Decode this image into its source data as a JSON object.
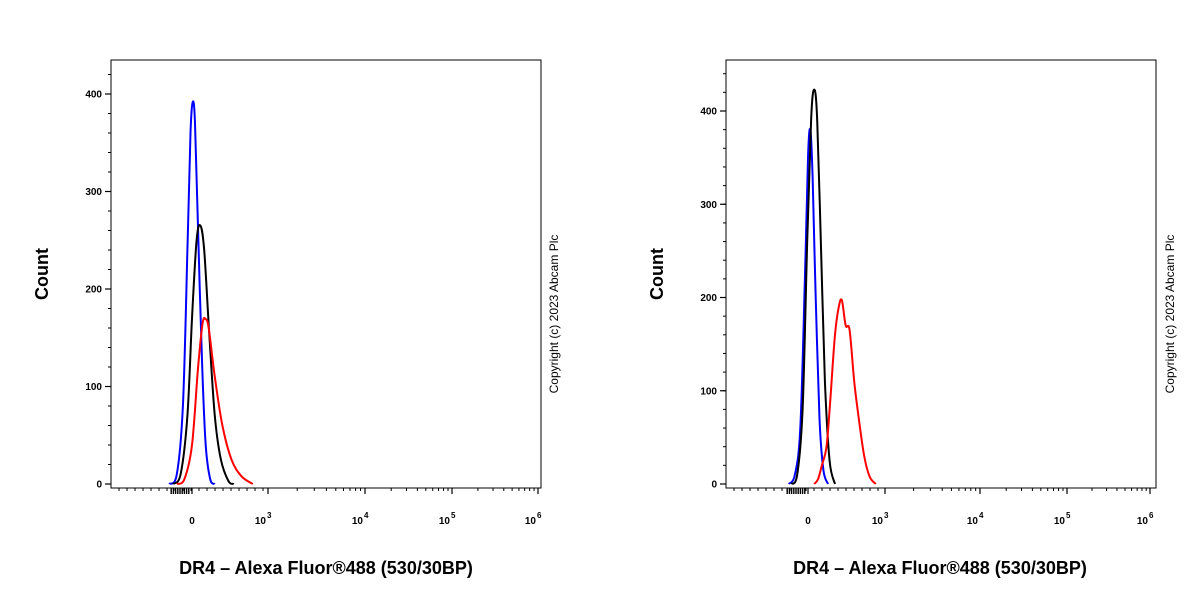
{
  "chart_data": [
    {
      "type": "line",
      "subtype": "flow-cytometry-histogram",
      "xlabel": "DR4 – Alexa Fluor®488 (530/30BP)",
      "ylabel": "Count",
      "x_scale": "biexponential",
      "ylim": [
        0,
        450
      ],
      "y_ticks": [
        "0",
        "100",
        "200",
        "300",
        "400"
      ],
      "x_ticks": [
        {
          "base": "0",
          "exp": ""
        },
        {
          "base": "10",
          "exp": "3"
        },
        {
          "base": "10",
          "exp": "4"
        },
        {
          "base": "10",
          "exp": "5"
        },
        {
          "base": "10",
          "exp": "6"
        }
      ],
      "copyright": "Copyright (c) 2023 Abcam Plc",
      "series": [
        {
          "color": "#0000ff",
          "peak_count": 392,
          "points": [
            [
              -300,
              0
            ],
            [
              -200,
              10
            ],
            [
              -120,
              80
            ],
            [
              -60,
              240
            ],
            [
              -20,
              360
            ],
            [
              10,
              392
            ],
            [
              40,
              370
            ],
            [
              80,
              260
            ],
            [
              130,
              130
            ],
            [
              180,
              40
            ],
            [
              240,
              5
            ],
            [
              300,
              0
            ]
          ]
        },
        {
          "color": "#000000",
          "peak_count": 265,
          "points": [
            [
              -250,
              0
            ],
            [
              -150,
              10
            ],
            [
              -60,
              70
            ],
            [
              0,
              170
            ],
            [
              60,
              250
            ],
            [
              110,
              265
            ],
            [
              160,
              240
            ],
            [
              230,
              150
            ],
            [
              300,
              70
            ],
            [
              380,
              25
            ],
            [
              480,
              3
            ],
            [
              550,
              0
            ]
          ]
        },
        {
          "color": "#ff0000",
          "peak_count": 169,
          "points": [
            [
              -200,
              0
            ],
            [
              -100,
              5
            ],
            [
              0,
              40
            ],
            [
              80,
              120
            ],
            [
              140,
              165
            ],
            [
              180,
              169
            ],
            [
              220,
              160
            ],
            [
              300,
              110
            ],
            [
              400,
              60
            ],
            [
              520,
              25
            ],
            [
              650,
              8
            ],
            [
              800,
              0
            ]
          ]
        }
      ]
    },
    {
      "type": "line",
      "subtype": "flow-cytometry-histogram",
      "xlabel": "DR4 – Alexa Fluor®488 (530/30BP)",
      "ylabel": "Count",
      "x_scale": "biexponential",
      "ylim": [
        0,
        450
      ],
      "y_ticks": [
        "0",
        "100",
        "200",
        "300",
        "400"
      ],
      "x_ticks": [
        {
          "base": "0",
          "exp": ""
        },
        {
          "base": "10",
          "exp": "3"
        },
        {
          "base": "10",
          "exp": "4"
        },
        {
          "base": "10",
          "exp": "5"
        },
        {
          "base": "10",
          "exp": "6"
        }
      ],
      "copyright": "Copyright (c) 2023 Abcam Plc",
      "series": [
        {
          "color": "#0000ff",
          "peak_count": 380,
          "points": [
            [
              -250,
              0
            ],
            [
              -170,
              10
            ],
            [
              -100,
              60
            ],
            [
              -40,
              220
            ],
            [
              0,
              350
            ],
            [
              30,
              380
            ],
            [
              60,
              330
            ],
            [
              100,
              200
            ],
            [
              150,
              70
            ],
            [
              200,
              15
            ],
            [
              260,
              0
            ]
          ]
        },
        {
          "color": "#000000",
          "peak_count": 423,
          "points": [
            [
              -220,
              0
            ],
            [
              -140,
              10
            ],
            [
              -70,
              80
            ],
            [
              -10,
              260
            ],
            [
              40,
              390
            ],
            [
              80,
              423
            ],
            [
              120,
              390
            ],
            [
              170,
              250
            ],
            [
              220,
              110
            ],
            [
              280,
              25
            ],
            [
              350,
              0
            ]
          ]
        },
        {
          "color": "#ff0000",
          "peak_count": 197,
          "points": [
            [
              80,
              0
            ],
            [
              130,
              5
            ],
            [
              180,
              20
            ],
            [
              240,
              40
            ],
            [
              290,
              90
            ],
            [
              350,
              160
            ],
            [
              400,
              190
            ],
            [
              440,
              197
            ],
            [
              490,
              170
            ],
            [
              540,
              165
            ],
            [
              600,
              110
            ],
            [
              660,
              70
            ],
            [
              730,
              30
            ],
            [
              800,
              8
            ],
            [
              880,
              0
            ]
          ]
        }
      ]
    }
  ]
}
